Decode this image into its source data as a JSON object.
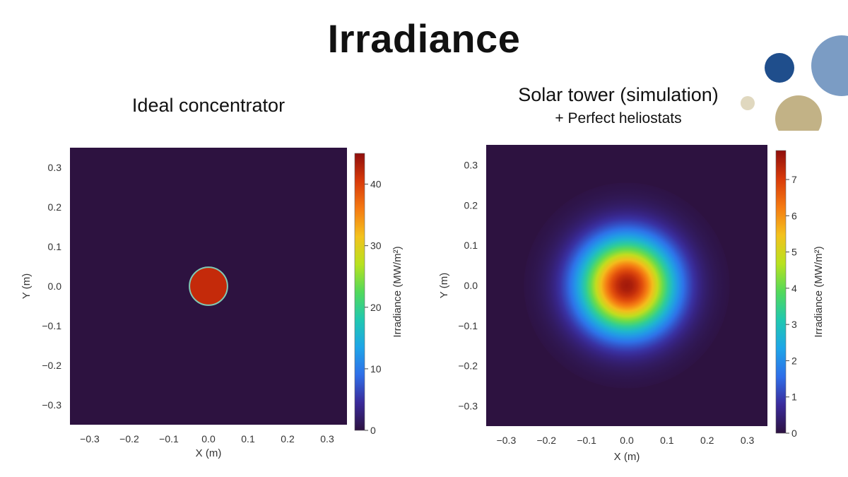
{
  "slide": {
    "title": "Irradiance",
    "decor_colors": [
      "#1f4e8c",
      "#7b9cc4",
      "#c2b286",
      "#e0d8bf"
    ]
  },
  "chart_data": [
    {
      "type": "heatmap",
      "title": "Ideal concentrator",
      "subtitle": "",
      "xlabel": "X (m)",
      "ylabel": "Y (m)",
      "xlim": [
        -0.35,
        0.35
      ],
      "ylim": [
        -0.35,
        0.35
      ],
      "xticks": [
        "−0.3",
        "−0.2",
        "−0.1",
        "0.0",
        "0.1",
        "0.2",
        "0.3"
      ],
      "xtick_values": [
        -0.3,
        -0.2,
        -0.1,
        0.0,
        0.1,
        0.2,
        0.3
      ],
      "yticks": [
        "0.3",
        "0.2",
        "0.1",
        "0.0",
        "−0.1",
        "−0.2",
        "−0.3"
      ],
      "ytick_values": [
        0.3,
        0.2,
        0.1,
        0.0,
        -0.1,
        -0.2,
        -0.3
      ],
      "colorbar": {
        "label": "Irradiance (MW/m²)",
        "range": [
          0,
          45
        ],
        "ticks": [
          "0",
          "10",
          "20",
          "30",
          "40"
        ],
        "tick_values": [
          0,
          10,
          20,
          30,
          40
        ]
      },
      "distribution": {
        "shape": "uniform-disk",
        "center": [
          0.0,
          0.0
        ],
        "radius_m": 0.048,
        "peak": 41,
        "background": 0
      }
    },
    {
      "type": "heatmap",
      "title": "Solar tower (simulation)",
      "subtitle": "+ Perfect heliostats",
      "xlabel": "X (m)",
      "ylabel": "Y (m)",
      "xlim": [
        -0.35,
        0.35
      ],
      "ylim": [
        -0.35,
        0.35
      ],
      "xticks": [
        "−0.3",
        "−0.2",
        "−0.1",
        "0.0",
        "0.1",
        "0.2",
        "0.3"
      ],
      "xtick_values": [
        -0.3,
        -0.2,
        -0.1,
        0.0,
        0.1,
        0.2,
        0.3
      ],
      "yticks": [
        "0.3",
        "0.2",
        "0.1",
        "0.0",
        "−0.1",
        "−0.2",
        "−0.3"
      ],
      "ytick_values": [
        0.3,
        0.2,
        0.1,
        0.0,
        -0.1,
        -0.2,
        -0.3
      ],
      "colorbar": {
        "label": "Irradiance (MW/m²)",
        "range": [
          0,
          7.8
        ],
        "ticks": [
          "0",
          "1",
          "2",
          "3",
          "4",
          "5",
          "6",
          "7"
        ],
        "tick_values": [
          0,
          1,
          2,
          3,
          4,
          5,
          6,
          7
        ]
      },
      "distribution": {
        "shape": "gaussian",
        "center": [
          0.0,
          0.0
        ],
        "sigma_m": 0.08,
        "peak": 7.6,
        "background": 0
      }
    }
  ]
}
